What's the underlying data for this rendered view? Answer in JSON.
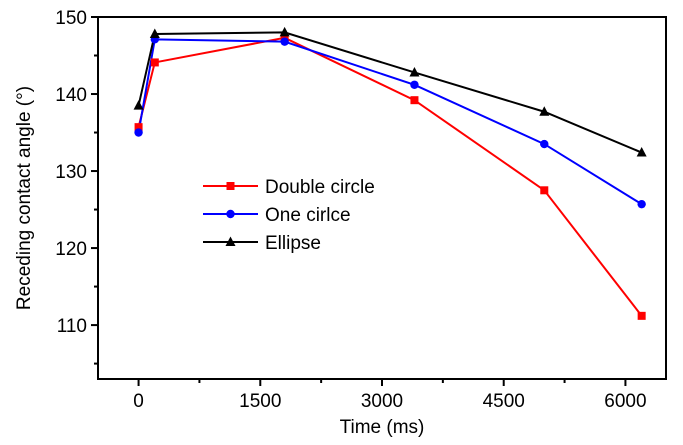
{
  "chart_data": {
    "type": "line",
    "title": "",
    "xlabel": "Time (ms)",
    "ylabel": "Receding contact angle (°)",
    "xlim": [
      -500,
      6500
    ],
    "ylim": [
      103,
      150
    ],
    "xticks": [
      0,
      1500,
      3000,
      4500,
      6000
    ],
    "xticks_minor": [
      750,
      2250,
      3750,
      5250
    ],
    "yticks": [
      110,
      120,
      130,
      140,
      150
    ],
    "yticks_minor": [
      105,
      115,
      125,
      135,
      145
    ],
    "grid": false,
    "legend_position": "center-left",
    "series": [
      {
        "name": "Double circle",
        "color": "#ff0000",
        "marker": "square",
        "x": [
          0,
          200,
          1800,
          3400,
          5000,
          6200
        ],
        "y": [
          135.7,
          144.1,
          147.3,
          139.2,
          127.5,
          111.2
        ]
      },
      {
        "name": "One cirlce",
        "color": "#0000ff",
        "marker": "circle",
        "x": [
          0,
          200,
          1800,
          3400,
          5000,
          6200
        ],
        "y": [
          135.0,
          147.1,
          146.8,
          141.2,
          133.5,
          125.7
        ]
      },
      {
        "name": "Ellipse",
        "color": "#000000",
        "marker": "triangle",
        "x": [
          0,
          200,
          1800,
          3400,
          5000,
          6200
        ],
        "y": [
          138.5,
          147.8,
          148.0,
          142.8,
          137.7,
          132.4
        ]
      }
    ]
  }
}
